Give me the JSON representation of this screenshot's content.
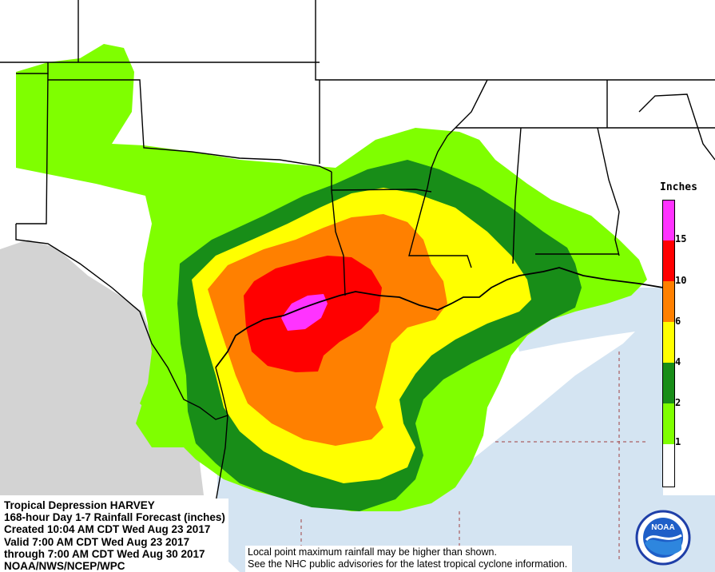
{
  "legend": {
    "title": "Inches",
    "ticks": [
      "15",
      "10",
      "6",
      "4",
      "2",
      "1"
    ],
    "colors": {
      "over15": "#ff33ff",
      "r10_15": "#ff0000",
      "r6_10": "#ff8000",
      "r4_6": "#ffff00",
      "r2_4": "#188d18",
      "r1_2": "#7fff00",
      "r0_1": "#ffffff"
    }
  },
  "info": {
    "line1": "Tropical Depression HARVEY",
    "line2": "168-hour Day 1-7 Rainfall Forecast (inches)",
    "line3": "Created 10:04 AM CDT Wed Aug 23 2017",
    "line4": "Valid 7:00 AM CDT Wed Aug 23 2017",
    "line5": "through 7:00 AM CDT Wed Aug 30 2017",
    "line6": "NOAA/NWS/NCEP/WPC"
  },
  "disclaimer": {
    "line1": "Local point maximum rainfall may be higher than shown.",
    "line2": "See the NHC public advisories for the latest tropical cyclone information."
  },
  "logo": {
    "text": "NOAA"
  },
  "map_colors": {
    "mexico": "#d3d3d3",
    "gulf": "#d4e4f2"
  }
}
